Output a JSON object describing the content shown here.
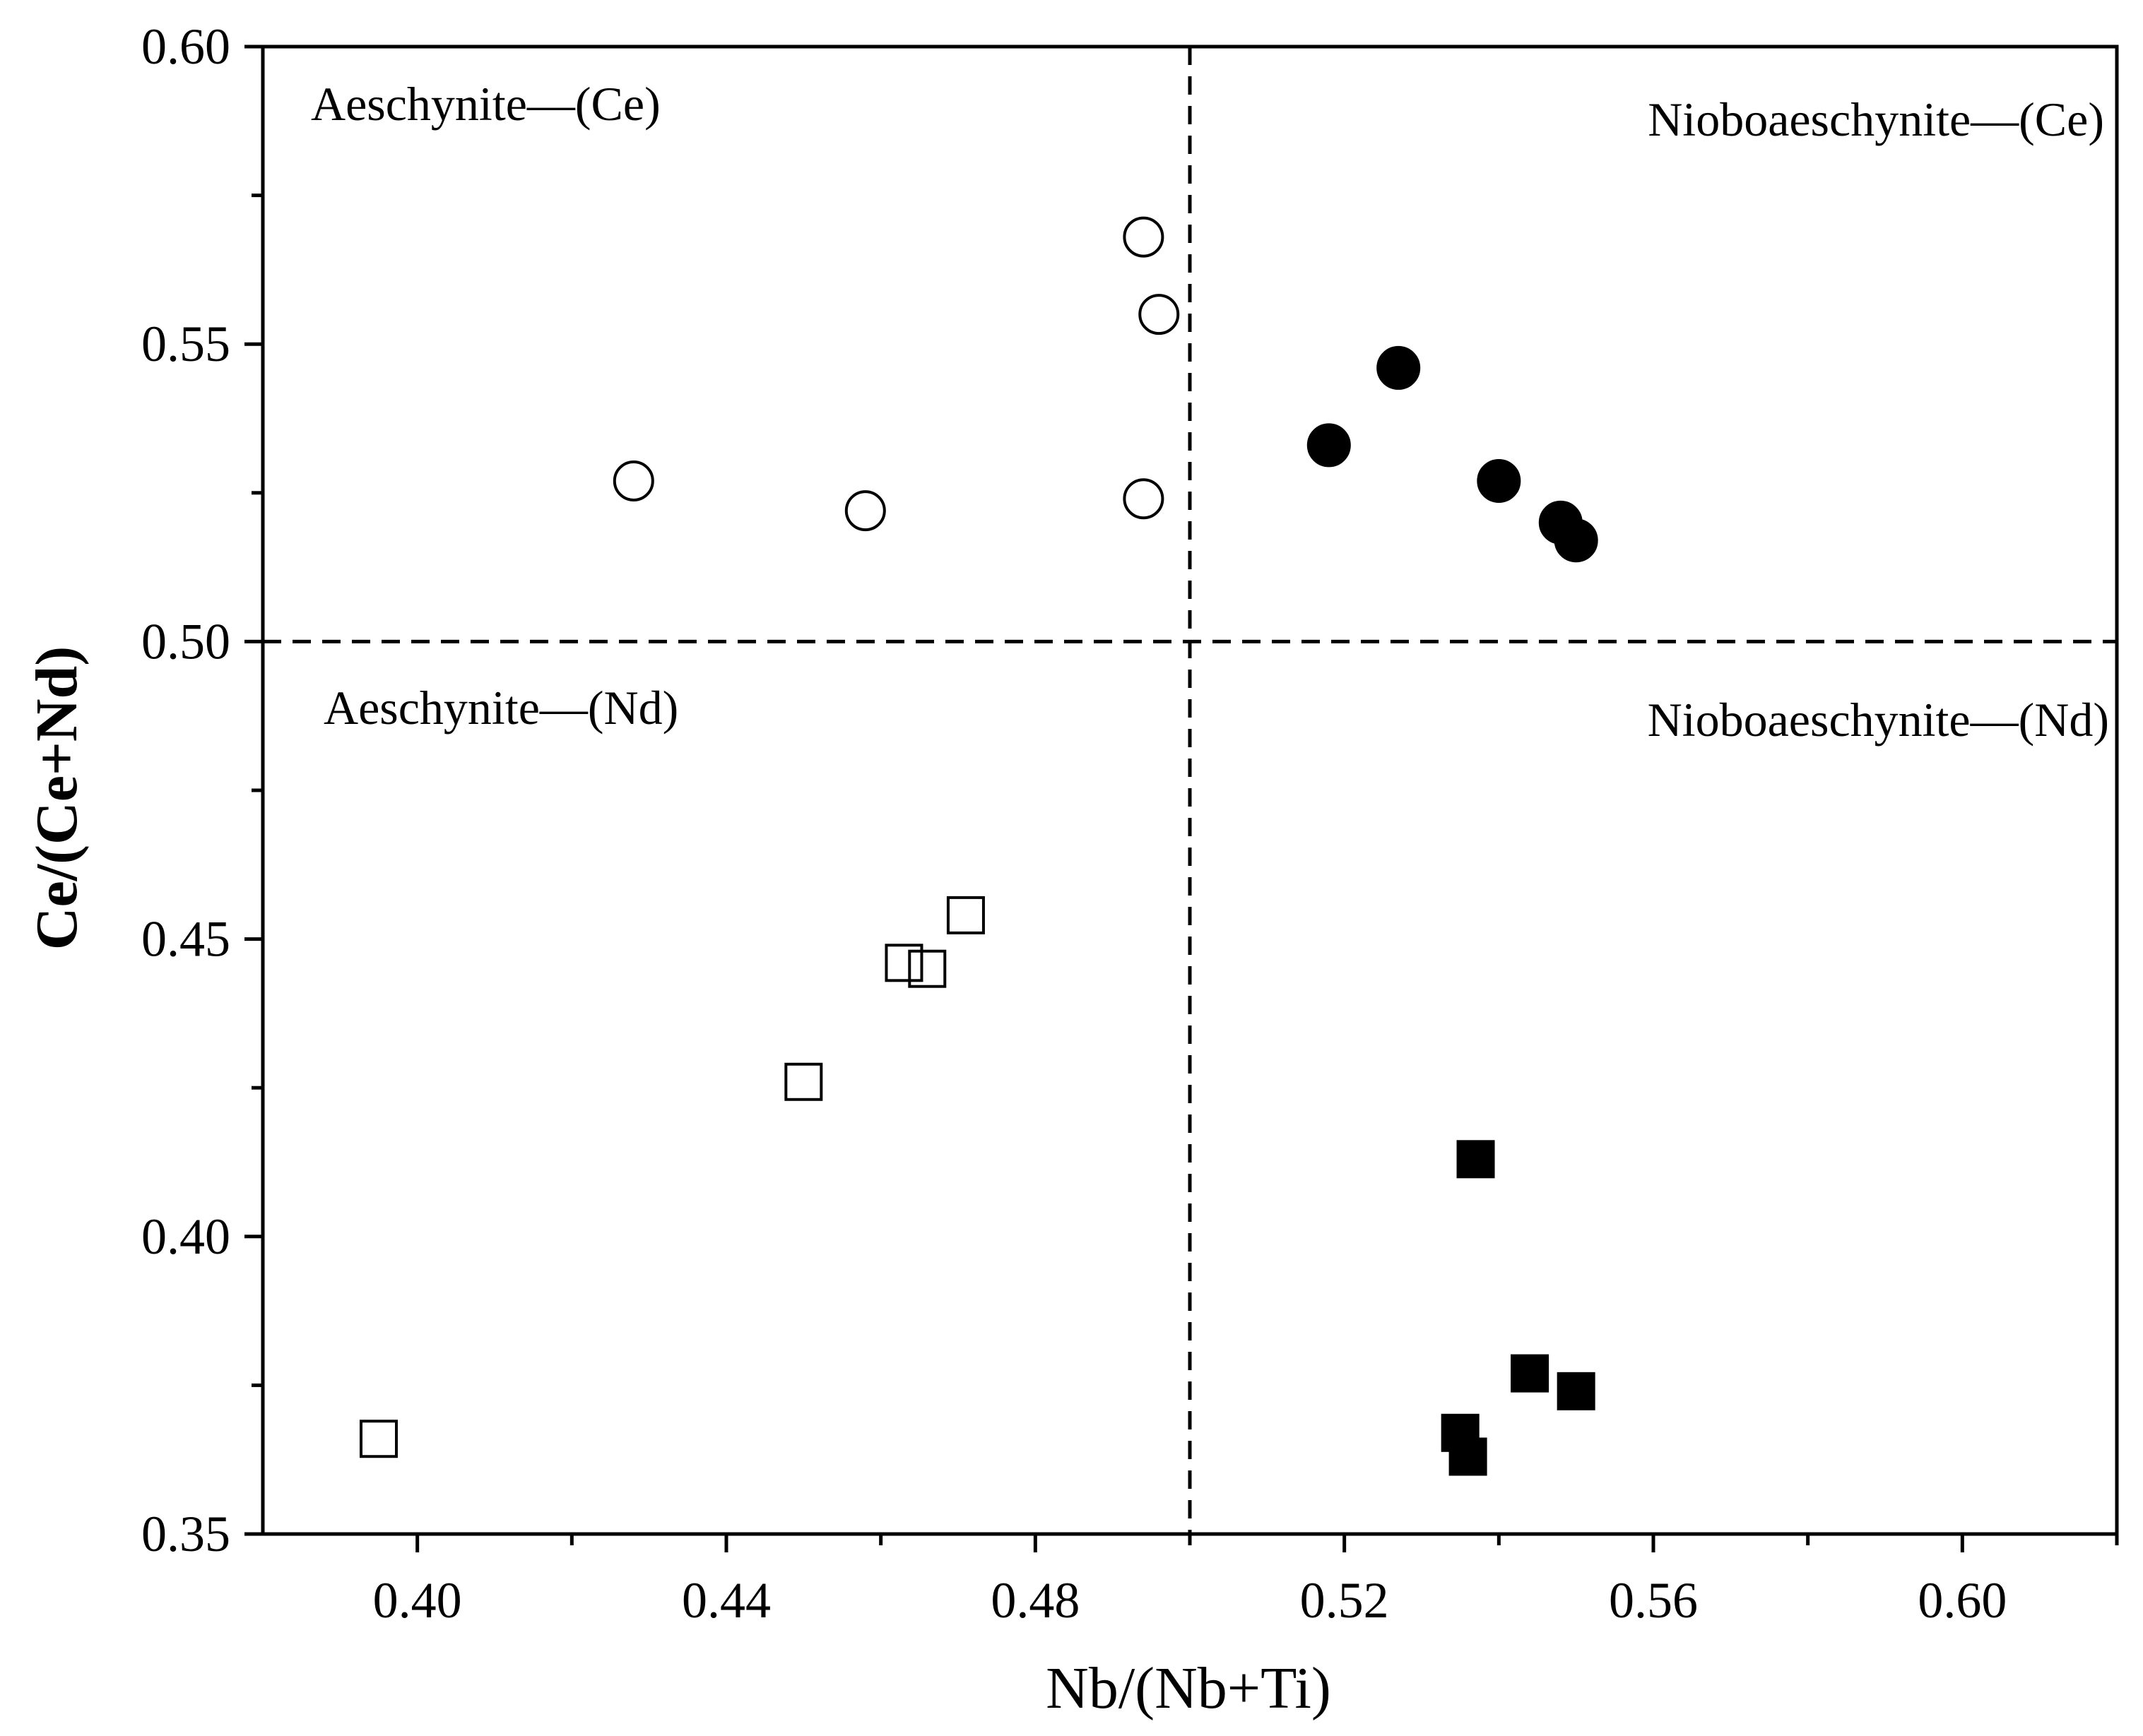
{
  "chart_data": {
    "type": "scatter",
    "xlabel": "Nb/(Nb+Ti)",
    "ylabel": "Ce/(Ce+Nd)",
    "xlim": [
      0.38,
      0.62
    ],
    "ylim": [
      0.35,
      0.6
    ],
    "xticks": [
      0.4,
      0.44,
      0.48,
      0.52,
      0.56,
      0.6
    ],
    "xtick_labels": [
      "0.40",
      "0.44",
      "0.48",
      "0.52",
      "0.56",
      "0.60"
    ],
    "xminor_ticks": [
      0.42,
      0.46,
      0.5,
      0.54,
      0.58,
      0.62
    ],
    "yticks": [
      0.35,
      0.4,
      0.45,
      0.5,
      0.55,
      0.6
    ],
    "ytick_labels": [
      "0.35",
      "0.40",
      "0.45",
      "0.50",
      "0.55",
      "0.60"
    ],
    "yminor_ticks": [
      0.375,
      0.425,
      0.475,
      0.525,
      0.575
    ],
    "divider_x": 0.5,
    "divider_y": 0.5,
    "region_labels": [
      {
        "text": "Aeschynite—(Ce)",
        "anchor": "top-left"
      },
      {
        "text": "Nioboaeschynite—(Ce)",
        "anchor": "top-right"
      },
      {
        "text": "Aeschynite—(Nd)",
        "anchor": "bottom-left"
      },
      {
        "text": "Nioboaeschynite—(Nd)",
        "anchor": "bottom-right"
      }
    ],
    "series": [
      {
        "name": "open-circle",
        "marker": "circle",
        "filled": false,
        "x": [
          0.428,
          0.458,
          0.494,
          0.494,
          0.496
        ],
        "y": [
          0.527,
          0.522,
          0.568,
          0.524,
          0.555
        ]
      },
      {
        "name": "filled-circle",
        "marker": "circle",
        "filled": true,
        "x": [
          0.518,
          0.527,
          0.54,
          0.548,
          0.55
        ],
        "y": [
          0.533,
          0.546,
          0.527,
          0.52,
          0.517
        ]
      },
      {
        "name": "open-square",
        "marker": "square",
        "filled": false,
        "x": [
          0.395,
          0.45,
          0.463,
          0.466,
          0.471
        ],
        "y": [
          0.366,
          0.426,
          0.446,
          0.445,
          0.454
        ]
      },
      {
        "name": "filled-square",
        "marker": "square",
        "filled": true,
        "x": [
          0.537,
          0.535,
          0.536,
          0.544,
          0.55
        ],
        "y": [
          0.413,
          0.367,
          0.363,
          0.377,
          0.374
        ]
      }
    ],
    "colors": {
      "marker": "#000000",
      "background": "#ffffff"
    }
  }
}
